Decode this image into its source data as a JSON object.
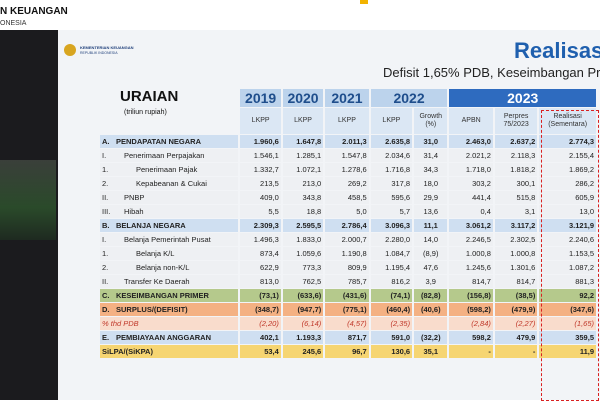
{
  "header": {
    "title": "N KEUANGAN",
    "subtitle": "ONESIA"
  },
  "slide": {
    "logo": [
      "KEMENTERIAN KEUANGAN",
      "REPUBLIK INDONESIA"
    ],
    "title": "Realisasi",
    "subtitle": "Defisit 1,65% PDB, Keseimbangan Prim"
  },
  "table": {
    "heading": "URAIAN",
    "unit": "(triliun rupiah)",
    "years": [
      "2019",
      "2020",
      "2021",
      "2022",
      "2023"
    ],
    "columns": [
      "LKPP",
      "LKPP",
      "LKPP",
      "LKPP",
      "Growth (%)",
      "APBN",
      "Perpres 75/2023",
      "Realisasi (Sementara)"
    ],
    "rows": [
      {
        "code": "A.",
        "label": "PENDAPATAN NEGARA",
        "values": [
          "1.960,6",
          "1.647,8",
          "2.011,3",
          "2.635,8",
          "31,0",
          "2.463,0",
          "2.637,2",
          "2.774,3"
        ]
      },
      {
        "code": "I.",
        "label": "Penerimaan Perpajakan",
        "values": [
          "1.546,1",
          "1.285,1",
          "1.547,8",
          "2.034,6",
          "31,4",
          "2.021,2",
          "2.118,3",
          "2.155,4"
        ]
      },
      {
        "code": "1.",
        "label": "Penerimaan Pajak",
        "values": [
          "1.332,7",
          "1.072,1",
          "1.278,6",
          "1.716,8",
          "34,3",
          "1.718,0",
          "1.818,2",
          "1.869,2"
        ]
      },
      {
        "code": "2.",
        "label": "Kepabeanan & Cukai",
        "values": [
          "213,5",
          "213,0",
          "269,2",
          "317,8",
          "18,0",
          "303,2",
          "300,1",
          "286,2"
        ]
      },
      {
        "code": "II.",
        "label": "PNBP",
        "values": [
          "409,0",
          "343,8",
          "458,5",
          "595,6",
          "29,9",
          "441,4",
          "515,8",
          "605,9"
        ]
      },
      {
        "code": "III.",
        "label": "Hibah",
        "values": [
          "5,5",
          "18,8",
          "5,0",
          "5,7",
          "13,6",
          "0,4",
          "3,1",
          "13,0"
        ]
      },
      {
        "code": "B.",
        "label": "BELANJA NEGARA",
        "values": [
          "2.309,3",
          "2.595,5",
          "2.786,4",
          "3.096,3",
          "11,1",
          "3.061,2",
          "3.117,2",
          "3.121,9"
        ]
      },
      {
        "code": "I.",
        "label": "Belanja Pemerintah Pusat",
        "values": [
          "1.496,3",
          "1.833,0",
          "2.000,7",
          "2.280,0",
          "14,0",
          "2.246,5",
          "2.302,5",
          "2.240,6"
        ]
      },
      {
        "code": "1.",
        "label": "Belanja K/L",
        "values": [
          "873,4",
          "1.059,6",
          "1.190,8",
          "1.084,7",
          "(8,9)",
          "1.000,8",
          "1.000,8",
          "1.153,5"
        ]
      },
      {
        "code": "2.",
        "label": "Belanja non-K/L",
        "values": [
          "622,9",
          "773,3",
          "809,9",
          "1.195,4",
          "47,6",
          "1.245,6",
          "1.301,6",
          "1.087,2"
        ]
      },
      {
        "code": "II.",
        "label": "Transfer Ke Daerah",
        "values": [
          "813,0",
          "762,5",
          "785,7",
          "816,2",
          "3,9",
          "814,7",
          "814,7",
          "881,3"
        ]
      },
      {
        "code": "C.",
        "label": "KESEIMBANGAN PRIMER",
        "values": [
          "(73,1)",
          "(633,6)",
          "(431,6)",
          "(74,1)",
          "(82,8)",
          "(156,8)",
          "(38,5)",
          "92,2"
        ]
      },
      {
        "code": "D.",
        "label": "SURPLUS/(DEFISIT)",
        "values": [
          "(348,7)",
          "(947,7)",
          "(775,1)",
          "(460,4)",
          "(40,6)",
          "(598,2)",
          "(479,9)",
          "(347,6)"
        ]
      },
      {
        "code": null,
        "label": "% thd PDB",
        "values": [
          "(2,20)",
          "(6,14)",
          "(4,57)",
          "(2,35)",
          null,
          "(2,84)",
          "(2,27)",
          "(1,65)"
        ]
      },
      {
        "code": "E.",
        "label": "PEMBIAYAAN ANGGARAN",
        "values": [
          "402,1",
          "1.193,3",
          "871,7",
          "591,0",
          "(32,2)",
          "598,2",
          "479,9",
          "359,5"
        ]
      },
      {
        "code": null,
        "label": "SiLPA/(SiKPA)",
        "values": [
          "53,4",
          "245,6",
          "96,7",
          "130,6",
          "35,1",
          "-",
          "-",
          "11,9"
        ]
      }
    ]
  }
}
